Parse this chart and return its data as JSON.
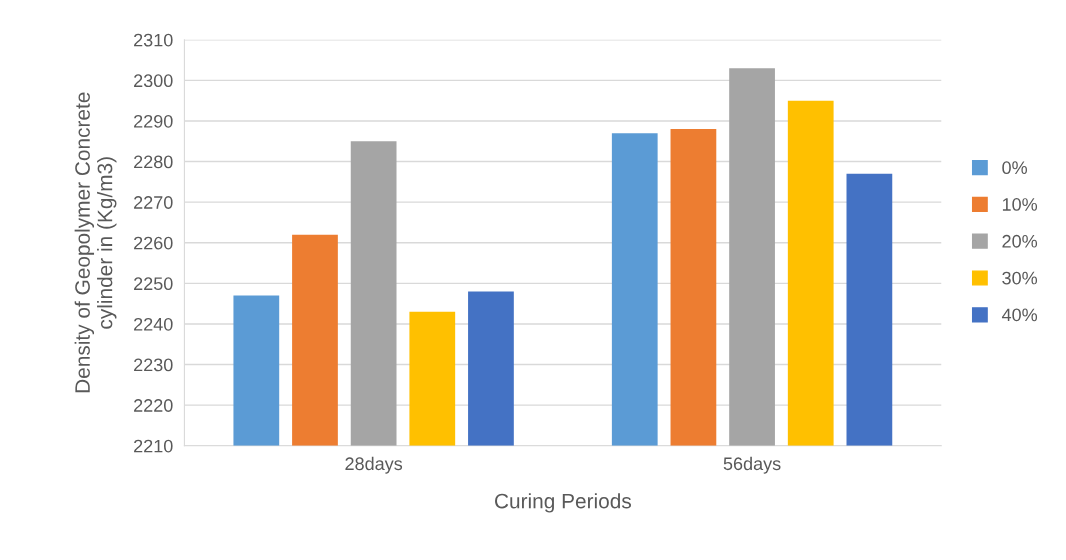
{
  "chart_data": {
    "type": "bar",
    "xlabel": "Curing Periods",
    "ylabel": "Density of Geopolymer Concrete\ncylinder in (Kg/m3)",
    "categories": [
      "28days",
      "56days"
    ],
    "series": [
      {
        "name": "0%",
        "color": "#5b9bd5",
        "values": [
          2247,
          2287
        ]
      },
      {
        "name": "10%",
        "color": "#ed7d31",
        "values": [
          2262,
          2288
        ]
      },
      {
        "name": "20%",
        "color": "#a5a5a5",
        "values": [
          2285,
          2303
        ]
      },
      {
        "name": "30%",
        "color": "#ffc000",
        "values": [
          2243,
          2295
        ]
      },
      {
        "name": "40%",
        "color": "#4472c4",
        "values": [
          2248,
          2277
        ]
      }
    ],
    "ylim": [
      2210,
      2310
    ],
    "yticks": [
      2210,
      2220,
      2230,
      2240,
      2250,
      2260,
      2270,
      2280,
      2290,
      2300,
      2310
    ],
    "grid": "y",
    "legend": "right"
  }
}
